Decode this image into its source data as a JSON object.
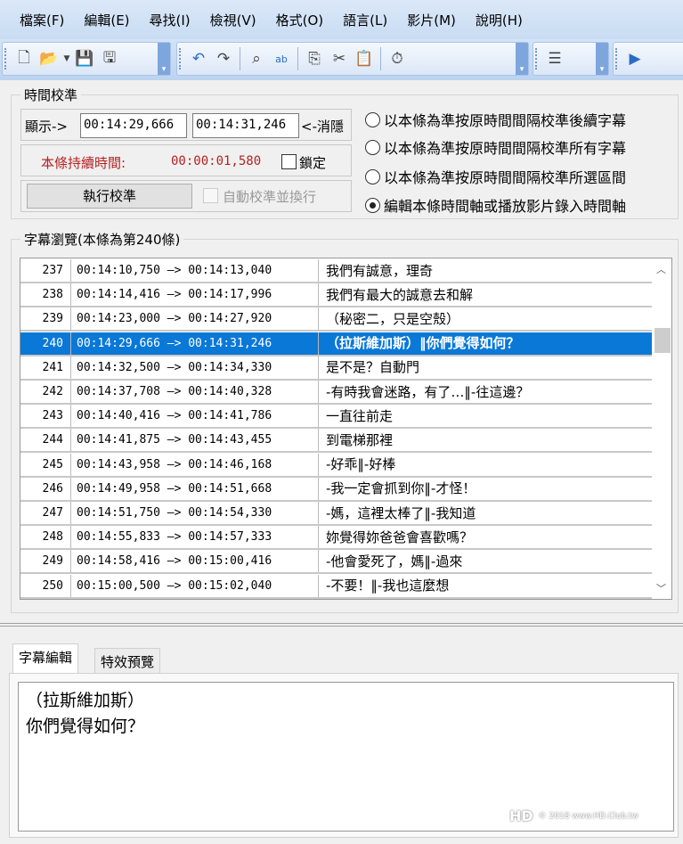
{
  "menu": [
    "檔案(F)",
    "編輯(E)",
    "尋找(I)",
    "檢視(V)",
    "格式(O)",
    "語言(L)",
    "影片(M)",
    "說明(H)"
  ],
  "toolbar": {
    "icons": [
      "new-file-icon",
      "open-folder-icon",
      "dropdown-arrow-icon",
      "save-icon",
      "save-as-icon",
      "undo-icon",
      "redo-icon",
      "find-icon",
      "replace-icon",
      "copy-icon",
      "cut-icon",
      "paste-icon",
      "timer-icon",
      "align-icon",
      "play-icon"
    ]
  },
  "timing": {
    "title": "時間校準",
    "show_label": "顯示->",
    "start": "00:14:29,666",
    "end": "00:14:31,246",
    "hide_label": "<-消隱",
    "duration_label": "本條持續時間:",
    "duration": "00:00:01,580",
    "lock_label": "鎖定",
    "lock_checked": false,
    "run_button": "執行校準",
    "auto_label": "自動校準並換行",
    "auto_enabled": false,
    "options": [
      {
        "label": "以本條為準按原時間間隔校準後續字幕",
        "selected": false
      },
      {
        "label": "以本條為準按原時間間隔校準所有字幕",
        "selected": false
      },
      {
        "label": "以本條為準按原時間間隔校準所選區間",
        "selected": false
      },
      {
        "label": "編輯本條時間軸或播放影片錄入時間軸",
        "selected": true
      }
    ],
    "duration_color": "#b22222"
  },
  "browse": {
    "title": "字幕瀏覽(本條為第240條)",
    "selected_index": 3,
    "selection_color": "#0a78d7",
    "rows": [
      {
        "n": "237",
        "t": "00:14:10,750 —> 00:14:13,040",
        "s": "我們有誠意，理奇"
      },
      {
        "n": "238",
        "t": "00:14:14,416 —> 00:14:17,996",
        "s": "我們有最大的誠意去和解"
      },
      {
        "n": "239",
        "t": "00:14:23,000 —> 00:14:27,920",
        "s": "（秘密二，只是空殼）"
      },
      {
        "n": "240",
        "t": "00:14:29,666 —> 00:14:31,246",
        "s": "（拉斯維加斯）‖你們覺得如何？"
      },
      {
        "n": "241",
        "t": "00:14:32,500 —> 00:14:34,330",
        "s": "是不是？自動門"
      },
      {
        "n": "242",
        "t": "00:14:37,708 —> 00:14:40,328",
        "s": "-有時我會迷路，有了…‖-往這邊？"
      },
      {
        "n": "243",
        "t": "00:14:40,416 —> 00:14:41,786",
        "s": "一直往前走"
      },
      {
        "n": "244",
        "t": "00:14:41,875 —> 00:14:43,455",
        "s": "到電梯那裡"
      },
      {
        "n": "245",
        "t": "00:14:43,958 —> 00:14:46,168",
        "s": "-好乖‖-好棒"
      },
      {
        "n": "246",
        "t": "00:14:49,958 —> 00:14:51,668",
        "s": "-我一定會抓到你‖-才怪！"
      },
      {
        "n": "247",
        "t": "00:14:51,750 —> 00:14:54,330",
        "s": "-媽，這裡太棒了‖-我知道"
      },
      {
        "n": "248",
        "t": "00:14:55,833 —> 00:14:57,333",
        "s": "妳覺得妳爸爸會喜歡嗎？"
      },
      {
        "n": "249",
        "t": "00:14:58,416 —> 00:15:00,416",
        "s": "-他會愛死了，媽‖-過來"
      },
      {
        "n": "250",
        "t": "00:15:00,500 —> 00:15:02,040",
        "s": "-不要！‖-我也這麼想"
      }
    ]
  },
  "editor": {
    "tabs": [
      "字幕編輯",
      "特效預覽"
    ],
    "active_tab": 0,
    "text": "（拉斯維加斯）\n你們覺得如何？",
    "watermark": "© 2018 www.HD.Club.tw"
  }
}
